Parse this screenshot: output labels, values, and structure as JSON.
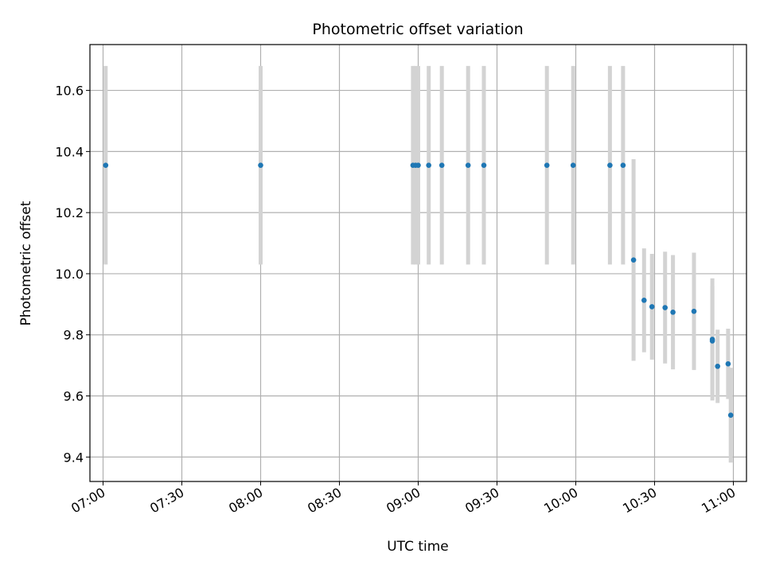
{
  "chart_data": {
    "type": "scatter",
    "title": "Photometric offset variation",
    "xlabel": "UTC time",
    "ylabel": "Photometric offset",
    "x_tick_labels": [
      "07:00",
      "07:30",
      "08:00",
      "08:30",
      "09:00",
      "09:30",
      "10:00",
      "10:30",
      "11:00"
    ],
    "x_ticks_minutes": [
      420,
      450,
      480,
      510,
      540,
      570,
      600,
      630,
      660
    ],
    "y_ticks": [
      9.4,
      9.6,
      9.8,
      10.0,
      10.2,
      10.4,
      10.6
    ],
    "y_tick_labels": [
      "9.4",
      "9.6",
      "9.8",
      "10.0",
      "10.2",
      "10.4",
      "10.6"
    ],
    "xlim": [
      "06:55",
      "11:05"
    ],
    "ylim": [
      9.32,
      10.75
    ],
    "grid": true,
    "colors": {
      "marker": "#1f77b4",
      "errorbar": "#d3d3d3",
      "grid": "#b0b0b0"
    },
    "points": [
      {
        "t": "07:01",
        "y": 10.355,
        "err": 0.325
      },
      {
        "t": "08:00",
        "y": 10.355,
        "err": 0.325
      },
      {
        "t": "08:58",
        "y": 10.355,
        "err": 0.325
      },
      {
        "t": "08:59",
        "y": 10.355,
        "err": 0.325
      },
      {
        "t": "09:00",
        "y": 10.355,
        "err": 0.325
      },
      {
        "t": "09:04",
        "y": 10.355,
        "err": 0.325
      },
      {
        "t": "09:09",
        "y": 10.355,
        "err": 0.325
      },
      {
        "t": "09:19",
        "y": 10.355,
        "err": 0.325
      },
      {
        "t": "09:25",
        "y": 10.355,
        "err": 0.325
      },
      {
        "t": "09:49",
        "y": 10.355,
        "err": 0.325
      },
      {
        "t": "09:59",
        "y": 10.355,
        "err": 0.325
      },
      {
        "t": "10:13",
        "y": 10.355,
        "err": 0.325
      },
      {
        "t": "10:18",
        "y": 10.355,
        "err": 0.325
      },
      {
        "t": "10:22",
        "y": 10.045,
        "err": 0.33
      },
      {
        "t": "10:26",
        "y": 9.913,
        "err": 0.17
      },
      {
        "t": "10:29",
        "y": 9.892,
        "err": 0.173
      },
      {
        "t": "10:34",
        "y": 9.889,
        "err": 0.183
      },
      {
        "t": "10:37",
        "y": 9.874,
        "err": 0.187
      },
      {
        "t": "10:45",
        "y": 9.877,
        "err": 0.192
      },
      {
        "t": "10:52",
        "y": 9.785,
        "err": 0.2
      },
      {
        "t": "10:52",
        "y": 9.78,
        "err": 0.18
      },
      {
        "t": "10:54",
        "y": 9.697,
        "err": 0.12
      },
      {
        "t": "10:58",
        "y": 9.705,
        "err": 0.115
      },
      {
        "t": "10:59",
        "y": 9.537,
        "err": 0.155
      }
    ]
  }
}
